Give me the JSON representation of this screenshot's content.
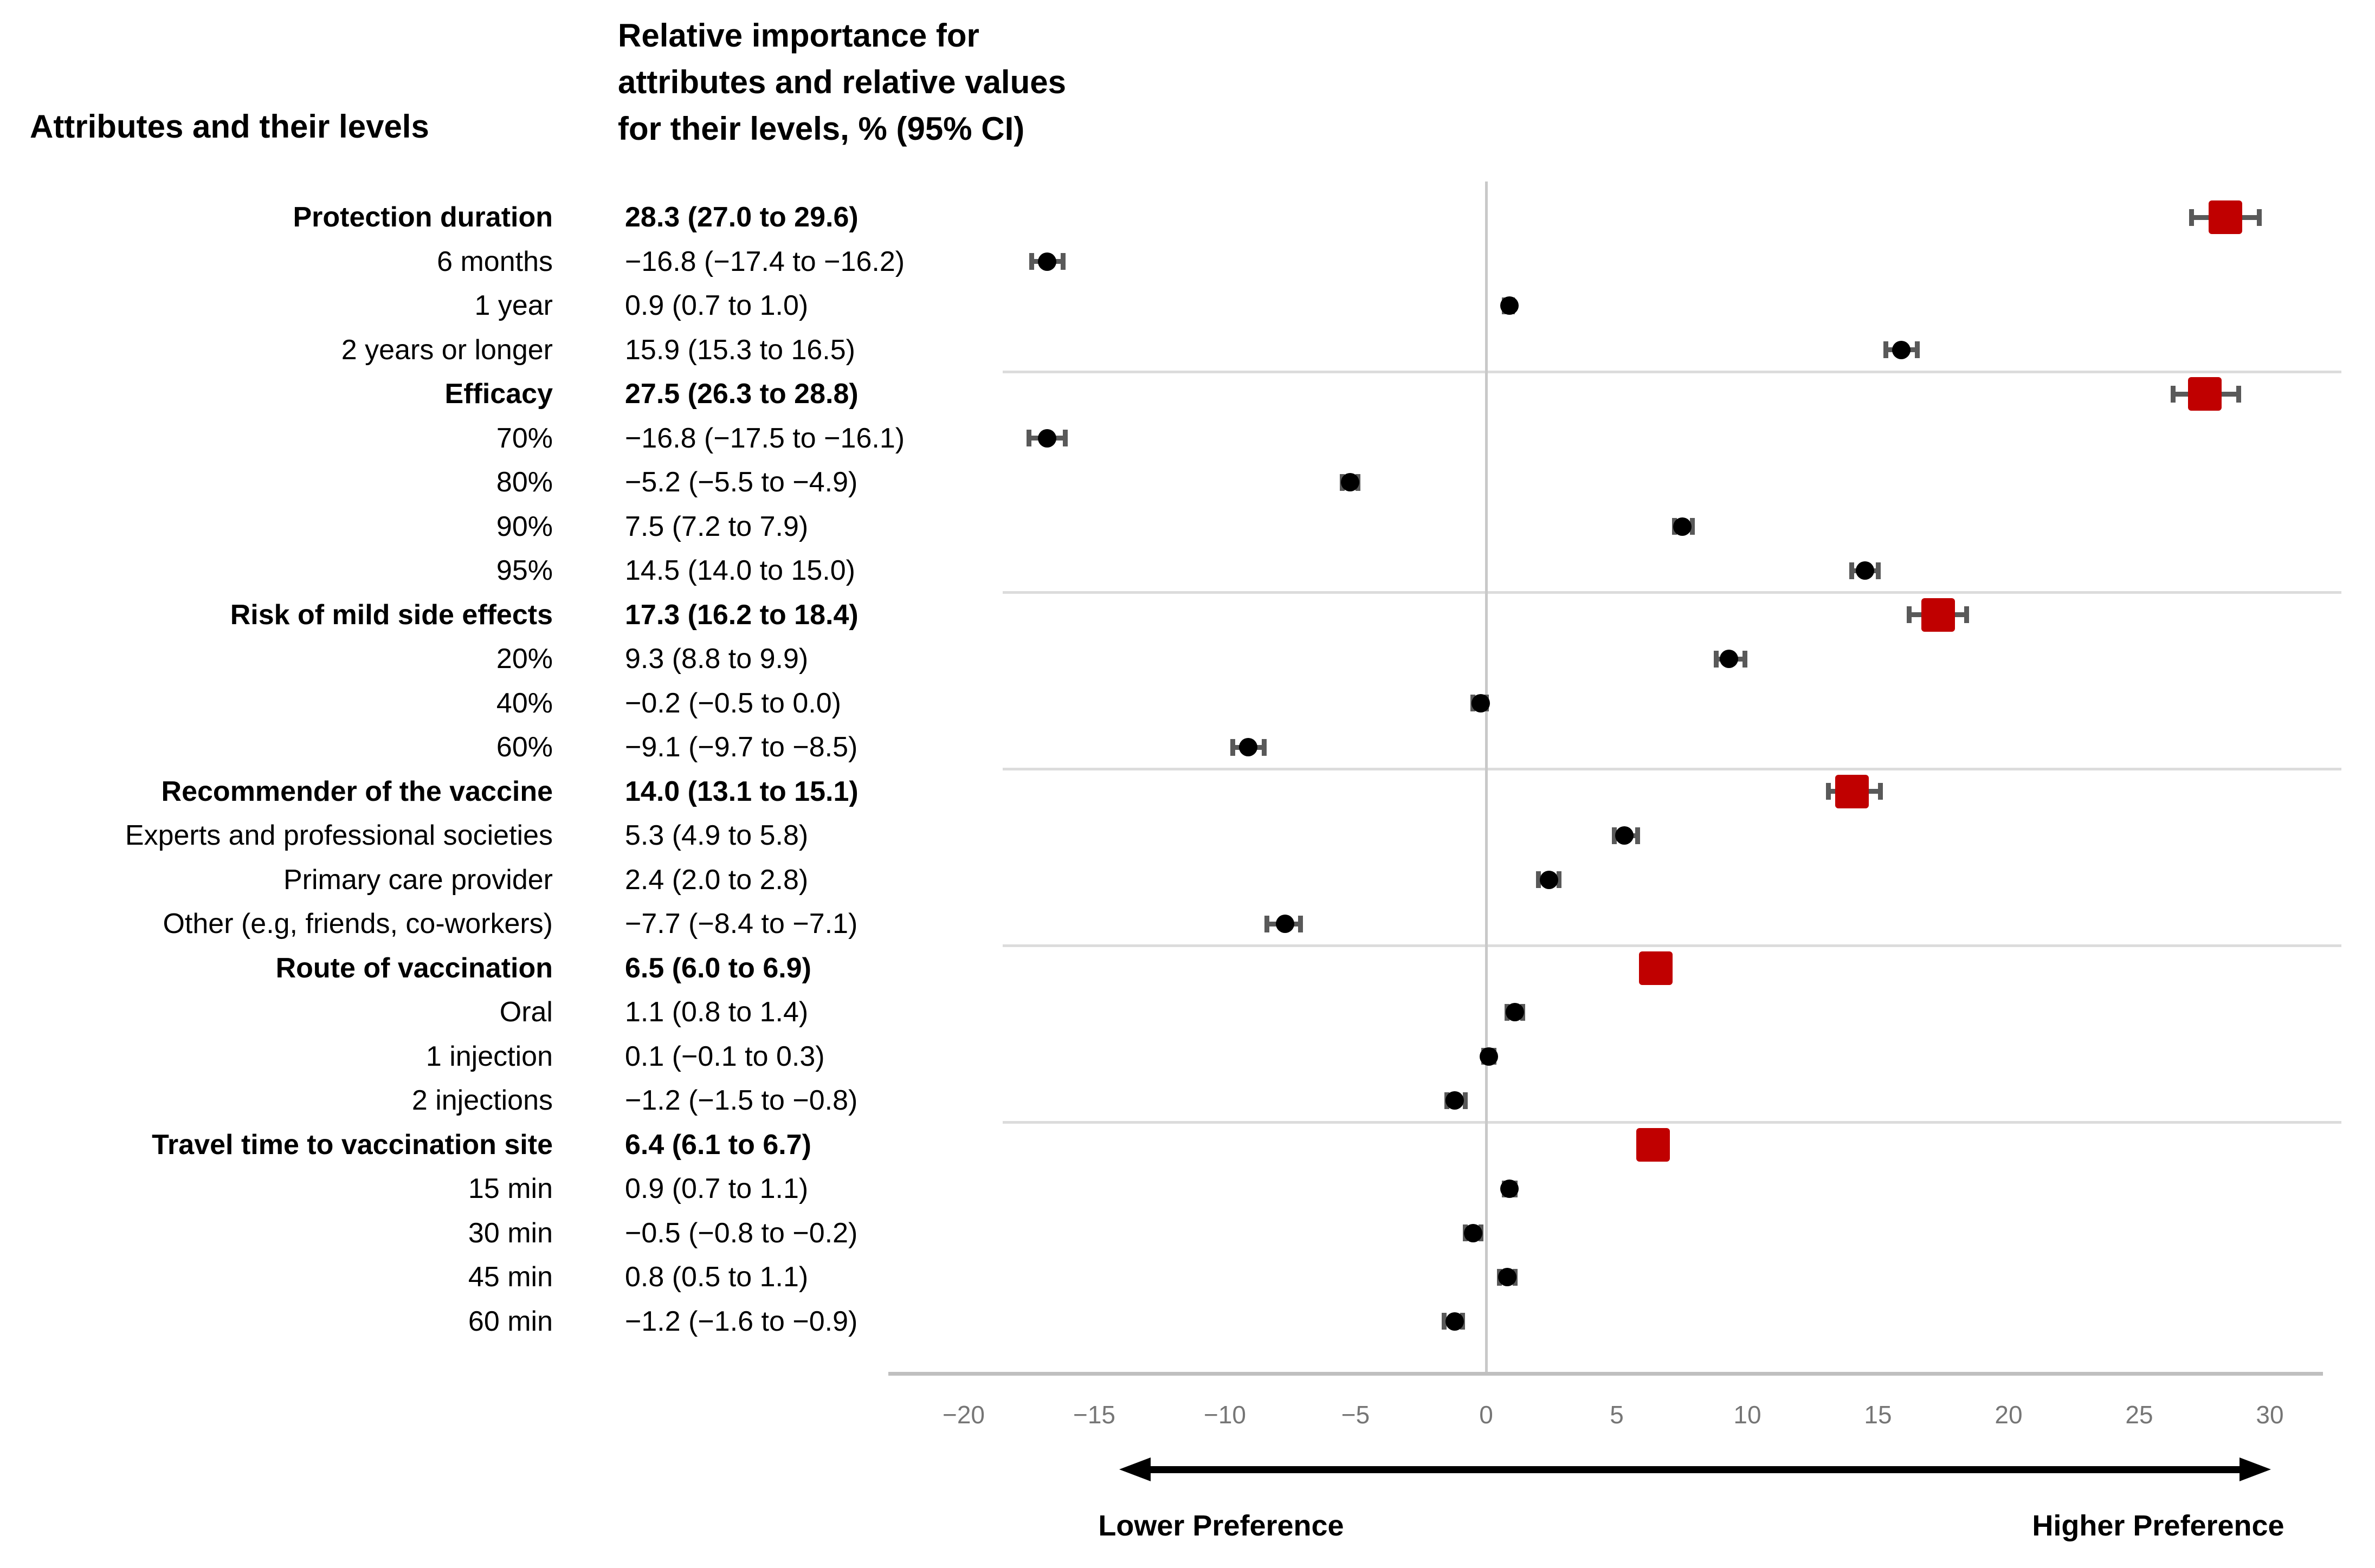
{
  "header": {
    "left": "Attributes and their levels",
    "right": "Relative importance for\nattributes and relative values\nfor their levels, % (95% CI)"
  },
  "axis": {
    "tick_labels": [
      "−20",
      "−15",
      "−10",
      "−5",
      "0",
      "5",
      "10",
      "15",
      "20",
      "25",
      "30"
    ],
    "tick_values": [
      -20,
      -15,
      -10,
      -5,
      0,
      5,
      10,
      15,
      20,
      25,
      30
    ]
  },
  "arrow": {
    "lower_label": "Lower Preference",
    "higher_label": "Higher Preference"
  },
  "colors": {
    "attribute_marker": "#c00000",
    "level_marker": "#000000",
    "error_bar": "#595959",
    "separator": "#dcdcdc",
    "axis_line": "#bfbfbf",
    "zero_line": "#c9c9c9",
    "tick_text": "#767676"
  },
  "chart_data": {
    "type": "scatter",
    "variant": "horizontal-forest-plot",
    "title": "Relative importance for attributes and relative values for their levels, % (95% CI)",
    "xlabel": "",
    "ylabel": "",
    "xlim": [
      -22.5,
      32
    ],
    "x_ticks": [
      -20,
      -15,
      -10,
      -5,
      0,
      5,
      10,
      15,
      20,
      25,
      30
    ],
    "grid": "group-separators-only",
    "legend": "none",
    "groups": [
      {
        "attribute": {
          "label": "Protection duration",
          "text": "28.3 (27.0 to 29.6)",
          "estimate": 28.3,
          "lo": 27.0,
          "hi": 29.6
        },
        "levels": [
          {
            "label": "6 months",
            "text": "−16.8 (−17.4 to −16.2)",
            "estimate": -16.8,
            "lo": -17.4,
            "hi": -16.2
          },
          {
            "label": "1 year",
            "text": "0.9 (0.7 to 1.0)",
            "estimate": 0.9,
            "lo": 0.7,
            "hi": 1.0
          },
          {
            "label": "2 years or longer",
            "text": "15.9 (15.3 to 16.5)",
            "estimate": 15.9,
            "lo": 15.3,
            "hi": 16.5
          }
        ]
      },
      {
        "attribute": {
          "label": "Efficacy",
          "text": "27.5 (26.3 to 28.8)",
          "estimate": 27.5,
          "lo": 26.3,
          "hi": 28.8
        },
        "levels": [
          {
            "label": "70%",
            "text": "−16.8 (−17.5 to −16.1)",
            "estimate": -16.8,
            "lo": -17.5,
            "hi": -16.1
          },
          {
            "label": "80%",
            "text": "−5.2 (−5.5 to −4.9)",
            "estimate": -5.2,
            "lo": -5.5,
            "hi": -4.9
          },
          {
            "label": "90%",
            "text": "7.5 (7.2 to 7.9)",
            "estimate": 7.5,
            "lo": 7.2,
            "hi": 7.9
          },
          {
            "label": "95%",
            "text": "14.5 (14.0 to 15.0)",
            "estimate": 14.5,
            "lo": 14.0,
            "hi": 15.0
          }
        ]
      },
      {
        "attribute": {
          "label": "Risk of mild side effects",
          "text": "17.3 (16.2 to 18.4)",
          "estimate": 17.3,
          "lo": 16.2,
          "hi": 18.4
        },
        "levels": [
          {
            "label": "20%",
            "text": "9.3 (8.8 to 9.9)",
            "estimate": 9.3,
            "lo": 8.8,
            "hi": 9.9
          },
          {
            "label": "40%",
            "text": "−0.2 (−0.5 to 0.0)",
            "estimate": -0.2,
            "lo": -0.5,
            "hi": 0.0
          },
          {
            "label": "60%",
            "text": "−9.1 (−9.7 to −8.5)",
            "estimate": -9.1,
            "lo": -9.7,
            "hi": -8.5
          }
        ]
      },
      {
        "attribute": {
          "label": "Recommender of the vaccine",
          "text": "14.0 (13.1 to 15.1)",
          "estimate": 14.0,
          "lo": 13.1,
          "hi": 15.1
        },
        "levels": [
          {
            "label": "Experts and professional societies",
            "text": "5.3 (4.9 to 5.8)",
            "estimate": 5.3,
            "lo": 4.9,
            "hi": 5.8
          },
          {
            "label": "Primary care provider",
            "text": "2.4 (2.0 to 2.8)",
            "estimate": 2.4,
            "lo": 2.0,
            "hi": 2.8
          },
          {
            "label": "Other (e.g, friends, co-workers)",
            "text": "−7.7 (−8.4 to −7.1)",
            "estimate": -7.7,
            "lo": -8.4,
            "hi": -7.1
          }
        ]
      },
      {
        "attribute": {
          "label": "Route of vaccination",
          "text": "6.5 (6.0 to 6.9)",
          "estimate": 6.5,
          "lo": 6.0,
          "hi": 6.9
        },
        "levels": [
          {
            "label": "Oral",
            "text": "1.1 (0.8 to 1.4)",
            "estimate": 1.1,
            "lo": 0.8,
            "hi": 1.4
          },
          {
            "label": "1 injection",
            "text": "0.1 (−0.1 to 0.3)",
            "estimate": 0.1,
            "lo": -0.1,
            "hi": 0.3
          },
          {
            "label": "2 injections",
            "text": "−1.2 (−1.5 to −0.8)",
            "estimate": -1.2,
            "lo": -1.5,
            "hi": -0.8
          }
        ]
      },
      {
        "attribute": {
          "label": "Travel time to vaccination site",
          "text": "6.4 (6.1 to 6.7)",
          "estimate": 6.4,
          "lo": 6.1,
          "hi": 6.7
        },
        "levels": [
          {
            "label": "15 min",
            "text": "0.9 (0.7 to 1.1)",
            "estimate": 0.9,
            "lo": 0.7,
            "hi": 1.1
          },
          {
            "label": "30 min",
            "text": "−0.5 (−0.8 to −0.2)",
            "estimate": -0.5,
            "lo": -0.8,
            "hi": -0.2
          },
          {
            "label": "45 min",
            "text": "0.8 (0.5 to 1.1)",
            "estimate": 0.8,
            "lo": 0.5,
            "hi": 1.1
          },
          {
            "label": "60 min",
            "text": "−1.2 (−1.6 to −0.9)",
            "estimate": -1.2,
            "lo": -1.6,
            "hi": -0.9
          }
        ]
      }
    ]
  }
}
